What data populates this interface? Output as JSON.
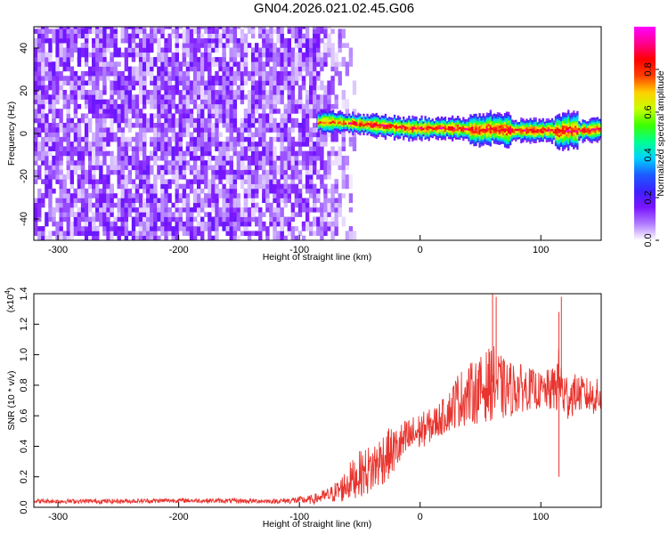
{
  "figure": {
    "title": "GN04.2026.021.02.45.G06"
  },
  "chart_data": [
    {
      "type": "heatmap",
      "xlabel": "Height of straight line (km)",
      "ylabel": "Frequency (Hz)",
      "xlim": [
        -320,
        150
      ],
      "ylim": [
        -50,
        50
      ],
      "x_ticks": [
        -300,
        -200,
        -100,
        0,
        100
      ],
      "y_ticks": [
        -40,
        -20,
        0,
        20,
        40
      ],
      "colorbar": {
        "label": "Normalized spectral amplitude",
        "range": [
          0,
          1
        ],
        "ticks": [
          0.0,
          0.2,
          0.4,
          0.6,
          0.8
        ],
        "colormap": [
          "#ffffff",
          "#b07cff",
          "#7a14ff",
          "#3c22ff",
          "#1c5cff",
          "#00d2ff",
          "#00ff90",
          "#3cff00",
          "#c8ff00",
          "#ffd000",
          "#ff4000",
          "#ff0000",
          "#ff0090",
          "#ff00ff"
        ]
      },
      "regions": [
        {
          "name": "noise",
          "x_range": [
            -320,
            -55
          ],
          "freq_range": [
            -50,
            50
          ],
          "amplitude_range": [
            0.02,
            0.18
          ]
        },
        {
          "name": "signal",
          "x_range": [
            -85,
            150
          ],
          "amplitude_range": [
            0.3,
            0.95
          ]
        }
      ],
      "signal_frequency": {
        "x": [
          -85,
          -70,
          -50,
          -30,
          -10,
          10,
          30,
          50,
          60,
          70,
          90,
          110,
          115,
          120,
          130,
          140,
          150
        ],
        "y": [
          5,
          5,
          4,
          3,
          2,
          2,
          2,
          1,
          2,
          1,
          1,
          1,
          0,
          1,
          1,
          1,
          2
        ]
      }
    },
    {
      "type": "line",
      "xlabel": "Height of straight line (km)",
      "ylabel": "SNR (10 * v/v)",
      "y_multiplier": "(x10",
      "y_multiplier_exp": "4",
      "y_multiplier_close": ")",
      "xlim": [
        -320,
        150
      ],
      "ylim": [
        0,
        1.4
      ],
      "x_ticks": [
        -300,
        -200,
        -100,
        0,
        100
      ],
      "y_ticks": [
        "0.0",
        "0.2",
        "0.4",
        "0.6",
        "0.8",
        "1.0",
        "1.2",
        "1.4"
      ],
      "series": [
        {
          "color": "#e8342e",
          "x": [
            -320,
            -250,
            -200,
            -120,
            -90,
            -75,
            -65,
            -60,
            -50,
            -40,
            -30,
            -20,
            -10,
            0,
            10,
            20,
            25,
            30,
            40,
            50,
            60,
            70,
            80,
            90,
            100,
            110,
            115,
            120,
            130,
            140,
            150
          ],
          "y": [
            0.04,
            0.04,
            0.045,
            0.04,
            0.05,
            0.08,
            0.12,
            0.16,
            0.22,
            0.25,
            0.33,
            0.38,
            0.45,
            0.5,
            0.54,
            0.6,
            0.64,
            0.7,
            0.74,
            0.77,
            0.82,
            0.77,
            0.78,
            0.78,
            0.76,
            0.77,
            0.83,
            0.72,
            0.75,
            0.73,
            0.72
          ],
          "spread": [
            0.015,
            0.015,
            0.015,
            0.015,
            0.03,
            0.05,
            0.09,
            0.12,
            0.15,
            0.17,
            0.18,
            0.15,
            0.14,
            0.12,
            0.11,
            0.12,
            0.14,
            0.18,
            0.2,
            0.22,
            0.25,
            0.2,
            0.17,
            0.14,
            0.12,
            0.15,
            0.22,
            0.18,
            0.12,
            0.12,
            0.12
          ],
          "peaks": [
            {
              "x": 60,
              "y": 1.4
            },
            {
              "x": 63,
              "y": 1.38
            },
            {
              "x": 117,
              "y": 1.38
            },
            {
              "x": 115,
              "y": 1.28
            },
            {
              "x": 115,
              "y": 0.2
            }
          ]
        }
      ]
    }
  ]
}
